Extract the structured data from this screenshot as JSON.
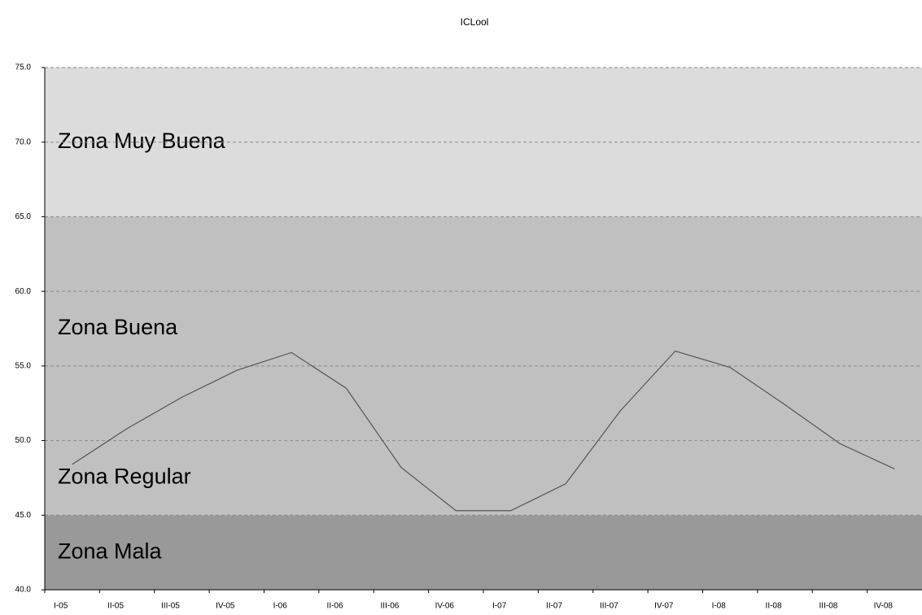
{
  "chart_data": {
    "type": "line",
    "title": "ICLool",
    "categories": [
      "I-05",
      "II-05",
      "III-05",
      "IV-05",
      "I-06",
      "II-06",
      "III-06",
      "IV-06",
      "I-07",
      "II-07",
      "III-07",
      "IV-07",
      "I-08",
      "II-08",
      "III-08",
      "IV-08"
    ],
    "values": [
      48.4,
      50.8,
      52.9,
      54.7,
      55.9,
      53.5,
      48.2,
      45.3,
      45.3,
      47.1,
      52.0,
      56.0,
      54.9,
      52.4,
      49.8,
      48.1
    ],
    "color": "#555555",
    "ylim": [
      40,
      75
    ],
    "yticks": [
      {
        "value": 40,
        "label": "40.0"
      },
      {
        "value": 45,
        "label": "45.0"
      },
      {
        "value": 50,
        "label": "50.0"
      },
      {
        "value": 55,
        "label": "55.0"
      },
      {
        "value": 60,
        "label": "60.0"
      },
      {
        "value": 65,
        "label": "65.0"
      },
      {
        "value": 70,
        "label": "70.0"
      },
      {
        "value": 75,
        "label": "75.0"
      }
    ],
    "grid": true,
    "bands": [
      {
        "name": "Zona Mala",
        "from": 40,
        "to": 45,
        "color": "#999999"
      },
      {
        "name": "Zona Regular",
        "from": 45,
        "to": 50,
        "color": "#c0c0c0"
      },
      {
        "name": "Zona Buena",
        "from": 50,
        "to": 65,
        "color": "#c0c0c0"
      },
      {
        "name": "Zona Muy Buena",
        "from": 65,
        "to": 75,
        "color": "#dcdcdc"
      }
    ]
  }
}
